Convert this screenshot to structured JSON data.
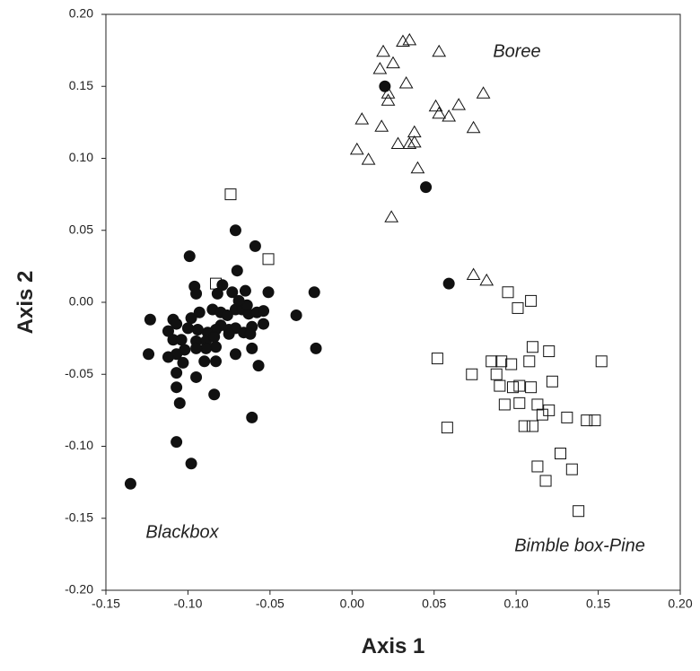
{
  "chart_data": {
    "type": "scatter",
    "x_label": "Axis 1",
    "y_label": "Axis 2",
    "annotations": [
      "Boree",
      "Blackbox",
      "Bimble box-Pine"
    ],
    "xlim": [
      -0.15,
      0.2
    ],
    "ylim": [
      -0.2,
      0.2
    ],
    "xticks": [
      {
        "value": -0.15,
        "label": "-0.15"
      },
      {
        "value": -0.1,
        "label": "-0.10"
      },
      {
        "value": -0.05,
        "label": "-0.05"
      },
      {
        "value": 0,
        "label": "0.00"
      },
      {
        "value": 0.05,
        "label": "0.05"
      },
      {
        "value": 0.1,
        "label": "0.10"
      },
      {
        "value": 0.15,
        "label": "0.15"
      },
      {
        "value": 0.2,
        "label": "0.20"
      }
    ],
    "yticks": [
      {
        "value": -0.2,
        "label": "-0.20"
      },
      {
        "value": -0.15,
        "label": "-0.15"
      },
      {
        "value": -0.1,
        "label": "-0.10"
      },
      {
        "value": -0.05,
        "label": "-0.05"
      },
      {
        "value": 0,
        "label": "0.00"
      },
      {
        "value": 0.05,
        "label": "0.05"
      },
      {
        "value": 0.1,
        "label": "0.10"
      },
      {
        "value": 0.15,
        "label": "0.15"
      },
      {
        "value": 0.2,
        "label": "0.20"
      }
    ],
    "grid": false,
    "series": [
      {
        "marker": "circle",
        "color": "#111111",
        "filled": true,
        "x": [
          0.02,
          0.045,
          0.059,
          -0.135,
          -0.071,
          -0.059,
          -0.099,
          -0.079,
          -0.073,
          -0.082,
          -0.096,
          -0.095,
          -0.07,
          -0.065,
          -0.051,
          -0.023,
          -0.034,
          -0.022,
          -0.123,
          -0.109,
          -0.098,
          -0.093,
          -0.085,
          -0.08,
          -0.076,
          -0.071,
          -0.067,
          -0.063,
          -0.058,
          -0.054,
          -0.064,
          -0.069,
          -0.08,
          -0.083,
          -0.088,
          -0.094,
          -0.1,
          -0.107,
          -0.112,
          -0.109,
          -0.104,
          -0.095,
          -0.089,
          -0.084,
          -0.075,
          -0.071,
          -0.066,
          -0.061,
          -0.054,
          -0.062,
          -0.075,
          -0.083,
          -0.089,
          -0.095,
          -0.102,
          -0.107,
          -0.112,
          -0.124,
          -0.083,
          -0.09,
          -0.071,
          -0.061,
          -0.103,
          -0.095,
          -0.107,
          -0.107,
          -0.105,
          -0.084,
          -0.057,
          -0.061,
          -0.107,
          -0.098
        ],
        "y": [
          0.15,
          0.08,
          0.013,
          -0.126,
          0.05,
          0.039,
          0.032,
          0.012,
          0.007,
          0.006,
          0.011,
          0.006,
          0.022,
          0.008,
          0.007,
          0.007,
          -0.009,
          -0.032,
          -0.012,
          -0.012,
          -0.011,
          -0.007,
          -0.005,
          -0.007,
          -0.009,
          -0.005,
          -0.005,
          -0.008,
          -0.007,
          -0.006,
          -0.002,
          0.001,
          -0.016,
          -0.019,
          -0.021,
          -0.019,
          -0.018,
          -0.015,
          -0.02,
          -0.026,
          -0.026,
          -0.027,
          -0.027,
          -0.024,
          -0.019,
          -0.018,
          -0.021,
          -0.017,
          -0.015,
          -0.022,
          -0.022,
          -0.031,
          -0.032,
          -0.032,
          -0.033,
          -0.036,
          -0.038,
          -0.036,
          -0.041,
          -0.041,
          -0.036,
          -0.032,
          -0.042,
          -0.052,
          -0.049,
          -0.059,
          -0.07,
          -0.064,
          -0.044,
          -0.08,
          -0.097,
          -0.112
        ]
      },
      {
        "marker": "triangle",
        "color": "#111111",
        "filled": false,
        "x": [
          0.035,
          0.031,
          0.053,
          0.019,
          0.025,
          0.017,
          0.033,
          0.006,
          0.018,
          0.022,
          0.022,
          0.051,
          0.053,
          0.059,
          0.065,
          0.08,
          0.038,
          0.038,
          0.035,
          0.028,
          0.003,
          0.01,
          0.04,
          0.074,
          0.024,
          0.074,
          0.082
        ],
        "y": [
          0.182,
          0.181,
          0.174,
          0.174,
          0.166,
          0.162,
          0.152,
          0.127,
          0.122,
          0.14,
          0.145,
          0.136,
          0.131,
          0.129,
          0.137,
          0.145,
          0.118,
          0.111,
          0.11,
          0.11,
          0.106,
          0.099,
          0.093,
          0.121,
          0.059,
          0.019,
          0.015
        ]
      },
      {
        "marker": "square",
        "color": "#111111",
        "filled": false,
        "x": [
          -0.074,
          -0.051,
          -0.083,
          0.095,
          0.101,
          0.109,
          0.052,
          0.091,
          0.085,
          0.097,
          0.108,
          0.11,
          0.12,
          0.152,
          0.073,
          0.088,
          0.09,
          0.102,
          0.098,
          0.109,
          0.122,
          0.093,
          0.102,
          0.113,
          0.12,
          0.116,
          0.131,
          0.143,
          0.148,
          0.105,
          0.11,
          0.058,
          0.127,
          0.113,
          0.134,
          0.118,
          0.138
        ],
        "y": [
          0.075,
          0.03,
          0.013,
          0.007,
          -0.004,
          0.001,
          -0.039,
          -0.041,
          -0.041,
          -0.043,
          -0.041,
          -0.031,
          -0.034,
          -0.041,
          -0.05,
          -0.05,
          -0.058,
          -0.058,
          -0.059,
          -0.059,
          -0.055,
          -0.071,
          -0.07,
          -0.071,
          -0.075,
          -0.078,
          -0.08,
          -0.082,
          -0.082,
          -0.086,
          -0.086,
          -0.087,
          -0.105,
          -0.114,
          -0.116,
          -0.124,
          -0.145
        ]
      }
    ]
  }
}
